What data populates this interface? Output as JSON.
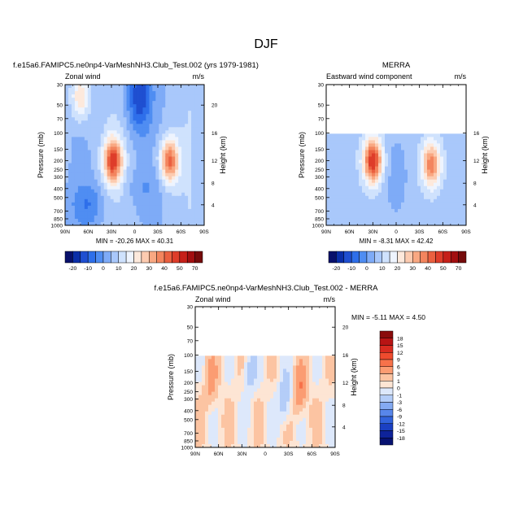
{
  "page": {
    "title": "DJF"
  },
  "colors": {
    "plot_border": "#000000",
    "missing": "#ffffff"
  },
  "chart_data": [
    {
      "id": "model",
      "type": "heatmap",
      "title": "f.e15a6.FAMIPC5.ne0np4-VarMeshNH3.Club_Test.002 (yrs 1979-1981)",
      "subtitle_left": "Zonal wind",
      "subtitle_right": "m/s",
      "xlabel": "",
      "ylabel": "Pressure (mb)",
      "ylabel_right": "Height (km)",
      "x_ticks": [
        "90N",
        "60N",
        "30N",
        "0",
        "30S",
        "60S",
        "90S"
      ],
      "y_ticks": [
        "30",
        "50",
        "70",
        "100",
        "150",
        "200",
        "250",
        "300",
        "400",
        "500",
        "700",
        "850",
        "1000"
      ],
      "y_ticks_right": [
        "20",
        "16",
        "12",
        "8",
        "4"
      ],
      "y_log_scale": true,
      "ylim": [
        1000,
        30
      ],
      "xlim": [
        90,
        -90
      ],
      "stats": "MIN = -20.26   MAX = 40.31",
      "features": [
        {
          "lat": 70,
          "p": 40,
          "value": 20
        },
        {
          "lat": 28,
          "p": 200,
          "value": 40
        },
        {
          "lat": -45,
          "p": 200,
          "value": 35
        },
        {
          "lat": -5,
          "p": 40,
          "value": -20
        },
        {
          "lat": 60,
          "p": 600,
          "value": -10
        },
        {
          "lat": -10,
          "p": 400,
          "value": -5
        }
      ]
    },
    {
      "id": "obs",
      "type": "heatmap",
      "title": "MERRA",
      "subtitle_left": "Eastward wind component",
      "subtitle_right": "m/s",
      "xlabel": "",
      "ylabel": "Pressure (mb)",
      "ylabel_right": "Height (km)",
      "x_ticks": [
        "90N",
        "60N",
        "30N",
        "0",
        "30S",
        "60S",
        "90S"
      ],
      "y_ticks": [
        "30",
        "50",
        "70",
        "100",
        "150",
        "200",
        "250",
        "300",
        "400",
        "500",
        "700",
        "850",
        "1000"
      ],
      "y_ticks_right": [
        "16",
        "12",
        "8",
        "4"
      ],
      "y_log_scale": true,
      "ylim": [
        1000,
        30
      ],
      "xlim": [
        90,
        -90
      ],
      "data_top_p": 100,
      "stats": "MIN = -8.31   MAX = 42.42",
      "features": [
        {
          "lat": 30,
          "p": 200,
          "value": 42
        },
        {
          "lat": -45,
          "p": 220,
          "value": 30
        },
        {
          "lat": 0,
          "p": 300,
          "value": -5
        }
      ]
    },
    {
      "id": "diff",
      "type": "heatmap",
      "title": "f.e15a6.FAMIPC5.ne0np4-VarMeshNH3.Club_Test.002 - MERRA",
      "subtitle_left": "Zonal wind",
      "subtitle_right": "m/s",
      "xlabel": "",
      "ylabel": "Pressure (mb)",
      "ylabel_right": "Height (km)",
      "x_ticks": [
        "90N",
        "60N",
        "30N",
        "0",
        "30S",
        "60S",
        "90S"
      ],
      "y_ticks": [
        "30",
        "50",
        "70",
        "100",
        "150",
        "200",
        "250",
        "300",
        "400",
        "500",
        "700",
        "850",
        "1000"
      ],
      "y_ticks_right": [
        "20",
        "16",
        "12",
        "8",
        "4"
      ],
      "y_log_scale": true,
      "ylim": [
        1000,
        30
      ],
      "xlim": [
        90,
        -90
      ],
      "data_top_p": 100,
      "stats": "MIN =  -5.11   MAX =   4.50",
      "features": [
        {
          "lat": 70,
          "p": 200,
          "value": 3
        },
        {
          "lat": -45,
          "p": 250,
          "value": 4
        },
        {
          "lat": 20,
          "p": 150,
          "value": -3
        },
        {
          "lat": -25,
          "p": 300,
          "value": -4
        }
      ]
    }
  ],
  "colorbars": [
    {
      "id": "shared-horizontal",
      "orientation": "horizontal",
      "labels": [
        "-20",
        "-10",
        "0",
        "10",
        "20",
        "30",
        "40",
        "50",
        "70"
      ],
      "levels": [
        -25,
        -20,
        -15,
        -10,
        -5,
        0,
        5,
        10,
        15,
        20,
        25,
        30,
        35,
        40,
        45,
        50,
        60,
        70
      ],
      "colors": [
        "#08106b",
        "#0a2ea8",
        "#1f4fd1",
        "#2e6fea",
        "#4f8df2",
        "#7eabf7",
        "#a9c8fb",
        "#cfe2fd",
        "#eef4fe",
        "#fde9dc",
        "#fccbb0",
        "#f9a882",
        "#f3855e",
        "#ea6040",
        "#de3d2a",
        "#c62019",
        "#a20f10",
        "#750b0b"
      ]
    },
    {
      "id": "diff-vertical",
      "orientation": "vertical",
      "labels": [
        "18",
        "15",
        "12",
        "9",
        "6",
        "3",
        "1",
        "0",
        "-1",
        "-3",
        "-6",
        "-9",
        "-12",
        "-15",
        "-18"
      ],
      "colors": [
        "#8a0b0b",
        "#b81414",
        "#d92b20",
        "#ef4b2e",
        "#f7724a",
        "#fb9c72",
        "#fcc4a2",
        "#fde5d4",
        "#dde8fb",
        "#b4cdf8",
        "#84aaf2",
        "#5886ea",
        "#3263dc",
        "#1b40c2",
        "#0e239a",
        "#071271"
      ]
    }
  ]
}
